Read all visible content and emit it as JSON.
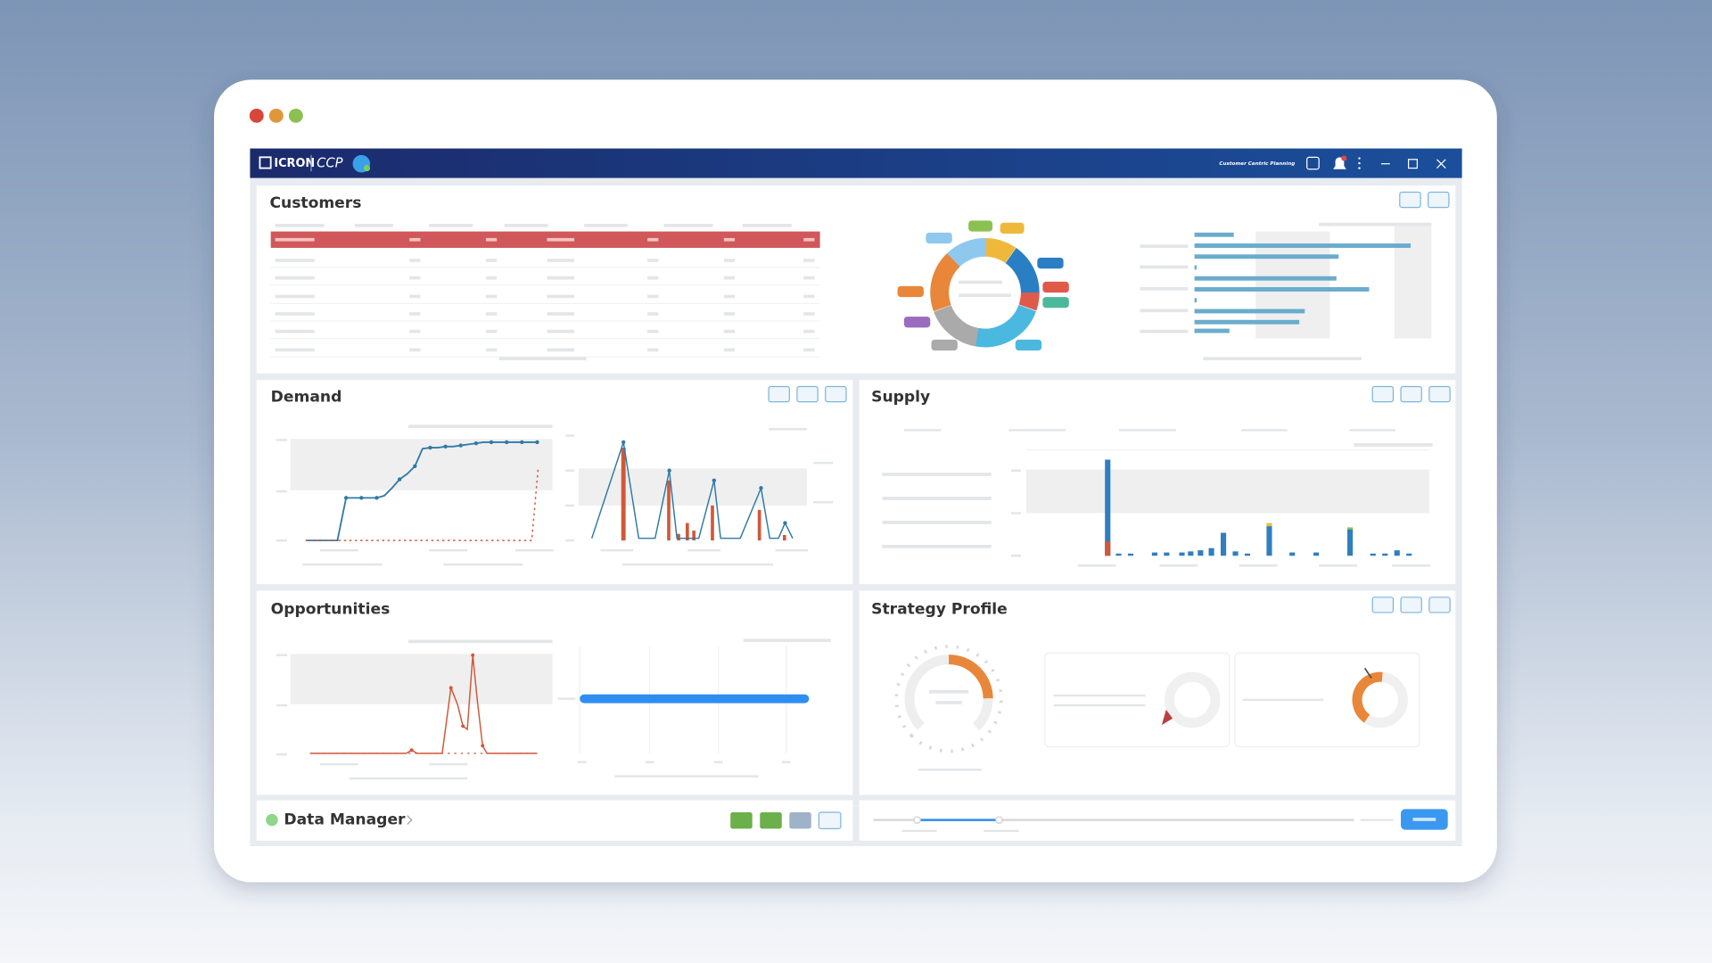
{
  "app": {
    "logo": "ICRON",
    "product": "CCP",
    "subtitle": "Customer Centric Planning"
  },
  "panels": {
    "customers": {
      "title": "Customers"
    },
    "demand": {
      "title": "Demand"
    },
    "supply": {
      "title": "Supply"
    },
    "opportunities": {
      "title": "Opportunities"
    },
    "strategy_profile": {
      "title": "Strategy Profile"
    },
    "data_manager": {
      "title": "Data Manager"
    }
  }
}
